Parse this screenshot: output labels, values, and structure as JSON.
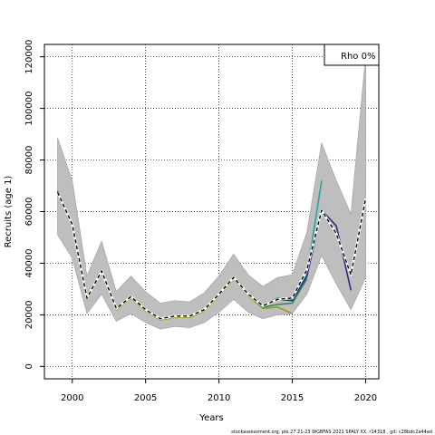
{
  "footnote": "stockassessment.org,  ple.27.21-23  WGBFAS  2021  SPALY  XX,  r14318 ,  git:  c28bdc2a44ad",
  "chart_data": {
    "type": "line",
    "xlabel": "Years",
    "ylabel": "Recruits (age 1)",
    "xlim": [
      1998.1,
      2020.9
    ],
    "ylim": [
      -4800,
      124800
    ],
    "xticks": [
      2000,
      2005,
      2010,
      2015,
      2020
    ],
    "xtick_labels": [
      "2000",
      "2005",
      "2010",
      "2015",
      "2020"
    ],
    "yticks": [
      0,
      20000,
      40000,
      60000,
      80000,
      100000,
      120000
    ],
    "ytick_labels": [
      "0",
      "20000",
      "40000",
      "60000",
      "80000",
      "100000",
      "120000"
    ],
    "grid": true,
    "legend_box": {
      "text": "Rho 0%",
      "position": "top-right"
    },
    "colors": {
      "band": "#bebebe",
      "band_edge": "#a8a8a8",
      "main": "#000000",
      "peel_green": "#2e8b57",
      "peel_olive": "#9a9a1a",
      "peel_teal": "#29a39a",
      "peel_lightblue": "#7fd3e6",
      "peel_navy": "#2b2b8c"
    },
    "band": {
      "x": [
        1999,
        2000,
        2001,
        2002,
        2003,
        2004,
        2005,
        2006,
        2007,
        2008,
        2009,
        2010,
        2011,
        2012,
        2013,
        2014,
        2015,
        2016,
        2017,
        2018,
        2019,
        2020
      ],
      "upper": [
        88500,
        72000,
        35000,
        48500,
        29000,
        35000,
        29000,
        24500,
        25500,
        25000,
        28500,
        35000,
        43500,
        35500,
        31000,
        34500,
        35500,
        52000,
        86500,
        72000,
        59000,
        120000
      ],
      "lower": [
        51000,
        42000,
        20500,
        28000,
        17500,
        20500,
        17000,
        14500,
        15500,
        15000,
        17000,
        21000,
        26000,
        21000,
        18500,
        20000,
        20500,
        28000,
        43000,
        32000,
        22000,
        34500
      ]
    },
    "series": [
      {
        "key": "main",
        "style": "dashed-main",
        "color_key": "main",
        "x": [
          1999,
          2000,
          2001,
          2002,
          2003,
          2004,
          2005,
          2006,
          2007,
          2008,
          2009,
          2010,
          2011,
          2012,
          2013,
          2014,
          2015,
          2016,
          2017,
          2018,
          2019,
          2020
        ],
        "y": [
          67500,
          55000,
          26500,
          37000,
          22500,
          27000,
          22000,
          18500,
          19500,
          19500,
          22000,
          28000,
          34500,
          28000,
          23500,
          26000,
          26500,
          37500,
          60500,
          51500,
          35500,
          65000
        ]
      },
      {
        "key": "peel-lightblue",
        "color_key": "peel_lightblue",
        "x": [
          1999,
          2000,
          2001,
          2002,
          2003,
          2004,
          2005,
          2006,
          2007,
          2008,
          2009,
          2010,
          2011,
          2012,
          2013,
          2014,
          2015,
          2016,
          2017
        ],
        "y": [
          67500,
          55000,
          26500,
          37000,
          22500,
          27000,
          22000,
          18500,
          19500,
          19500,
          22000,
          28000,
          34500,
          28000,
          23500,
          26000,
          26500,
          37000,
          62000
        ]
      },
      {
        "key": "peel-teal",
        "color_key": "peel_teal",
        "x": [
          1999,
          2000,
          2001,
          2002,
          2003,
          2004,
          2005,
          2006,
          2007,
          2008,
          2009,
          2010,
          2011,
          2012,
          2013,
          2014,
          2015,
          2016,
          2017
        ],
        "y": [
          67500,
          55000,
          26500,
          37000,
          22500,
          27000,
          22000,
          18500,
          19500,
          19500,
          22000,
          28000,
          34500,
          28000,
          23500,
          26500,
          26000,
          35500,
          72000
        ]
      },
      {
        "key": "peel-olive",
        "color_key": "peel_olive",
        "x": [
          1999,
          2000,
          2001,
          2002,
          2003,
          2004,
          2005,
          2006,
          2007,
          2008,
          2009,
          2010,
          2011,
          2012,
          2013,
          2014,
          2015
        ],
        "y": [
          67000,
          54500,
          26000,
          36500,
          22000,
          26500,
          21500,
          18000,
          19000,
          19000,
          21500,
          27500,
          34000,
          27500,
          22500,
          23000,
          20500
        ]
      },
      {
        "key": "peel-green",
        "color_key": "peel_green",
        "x": [
          1999,
          2000,
          2001,
          2002,
          2003,
          2004,
          2005,
          2006,
          2007,
          2008,
          2009,
          2010,
          2011,
          2012,
          2013,
          2014,
          2015,
          2016
        ],
        "y": [
          68000,
          55000,
          26500,
          37000,
          22500,
          27000,
          22000,
          18500,
          19500,
          19500,
          22000,
          28000,
          34500,
          28000,
          23000,
          24000,
          24500,
          34000
        ]
      },
      {
        "key": "peel-navy",
        "color_key": "peel_navy",
        "x": [
          2013,
          2014,
          2015,
          2016,
          2017,
          2018,
          2019
        ],
        "y": [
          23500,
          26000,
          25500,
          35000,
          60500,
          54500,
          29500
        ]
      }
    ]
  }
}
